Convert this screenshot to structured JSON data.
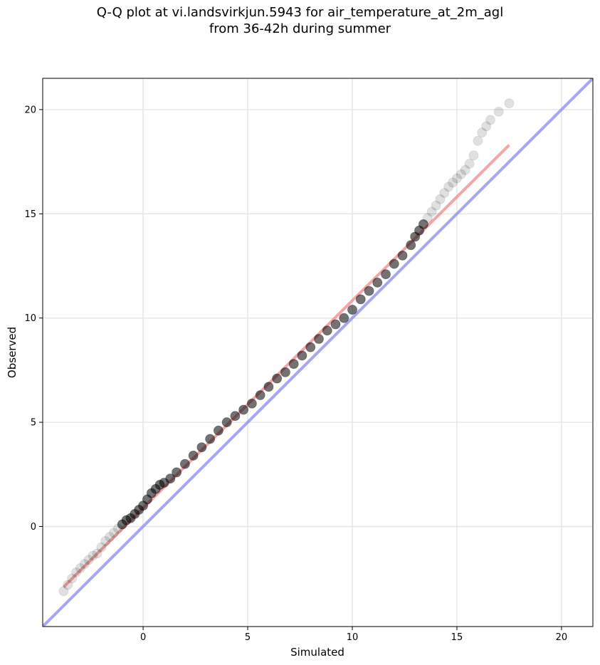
{
  "chart_data": {
    "type": "scatter",
    "title": "Q-Q plot at vi.landsvirkjun.5943 for air_temperature_at_2m_agl\nfrom 36-42h during summer",
    "xlabel": "Simulated",
    "ylabel": "Observed",
    "xlim": [
      -4.8,
      21.5
    ],
    "ylim": [
      -4.8,
      21.5
    ],
    "xticks": [
      0,
      5,
      10,
      15,
      20
    ],
    "yticks": [
      0,
      5,
      10,
      15,
      20
    ],
    "grid": true,
    "quantile_points": {
      "color": "#000000",
      "simulated": [
        -3.8,
        -3.6,
        -3.4,
        -3.2,
        -3.0,
        -2.8,
        -2.6,
        -2.4,
        -2.2,
        -2.0,
        -1.8,
        -1.6,
        -1.4,
        -1.2,
        -1.0,
        -0.8,
        -0.6,
        -0.4,
        -0.2,
        0.0,
        0.2,
        0.4,
        0.6,
        0.8,
        1.0,
        1.3,
        1.6,
        2.0,
        2.4,
        2.8,
        3.2,
        3.6,
        4.0,
        4.4,
        4.8,
        5.2,
        5.6,
        6.0,
        6.4,
        6.8,
        7.2,
        7.6,
        8.0,
        8.4,
        8.8,
        9.2,
        9.6,
        10.0,
        10.4,
        10.8,
        11.2,
        11.6,
        12.0,
        12.4,
        12.8,
        13.0,
        13.2,
        13.4,
        13.6,
        13.8,
        14.0,
        14.2,
        14.4,
        14.6,
        14.8,
        15.0,
        15.2,
        15.4,
        15.6,
        15.8,
        16.0,
        16.2,
        16.4,
        16.6,
        17.0,
        17.5
      ],
      "observed": [
        -3.1,
        -2.8,
        -2.5,
        -2.2,
        -2.0,
        -1.8,
        -1.6,
        -1.4,
        -1.3,
        -1.0,
        -0.7,
        -0.5,
        -0.3,
        -0.1,
        0.1,
        0.3,
        0.4,
        0.6,
        0.8,
        1.0,
        1.3,
        1.6,
        1.8,
        2.0,
        2.1,
        2.3,
        2.6,
        3.0,
        3.4,
        3.8,
        4.2,
        4.6,
        5.0,
        5.3,
        5.6,
        5.9,
        6.3,
        6.7,
        7.1,
        7.4,
        7.8,
        8.2,
        8.6,
        9.0,
        9.4,
        9.7,
        10.0,
        10.4,
        10.9,
        11.3,
        11.7,
        12.1,
        12.6,
        13.0,
        13.5,
        13.9,
        14.2,
        14.5,
        14.8,
        15.1,
        15.4,
        15.7,
        16.0,
        16.3,
        16.5,
        16.7,
        16.9,
        17.1,
        17.4,
        17.8,
        18.5,
        18.9,
        19.2,
        19.5,
        19.9,
        20.3
      ]
    },
    "fit_line": {
      "color": "#f08080",
      "x": [
        -3.8,
        17.5
      ],
      "y": [
        -2.9,
        18.3
      ]
    },
    "reference_line": {
      "color": "#8888ee",
      "x": [
        -4.8,
        21.5
      ],
      "y": [
        -4.8,
        21.5
      ]
    }
  }
}
